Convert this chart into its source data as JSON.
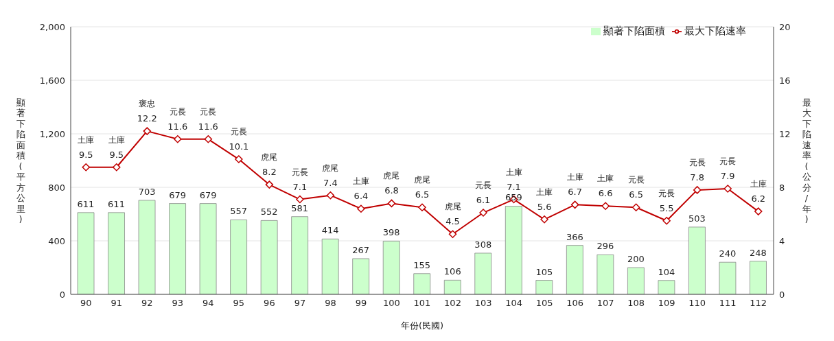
{
  "chart_data": {
    "type": "bar",
    "xlabel": "年份(民國)",
    "ylabel": "顯著下陷面積(平方公里)",
    "y2label": "最大下陷速率(公分/年)",
    "categories": [
      "90",
      "91",
      "92",
      "93",
      "94",
      "95",
      "96",
      "97",
      "98",
      "99",
      "100",
      "101",
      "102",
      "103",
      "104",
      "105",
      "106",
      "107",
      "108",
      "109",
      "110",
      "111",
      "112"
    ],
    "series": [
      {
        "name": "顯著下陷面積",
        "color": "#ccffcc",
        "values": [
          611,
          611,
          703,
          679,
          679,
          557,
          552,
          581,
          414,
          267,
          398,
          155,
          106,
          308,
          659,
          105,
          366,
          296,
          200,
          104,
          503,
          240,
          248
        ]
      },
      {
        "name": "最大下陷速率",
        "type": "line",
        "axis": "y2",
        "color": "#c00000",
        "marker": "diamond",
        "values": [
          9.5,
          9.5,
          12.2,
          11.6,
          11.6,
          10.1,
          8.2,
          7.1,
          7.4,
          6.4,
          6.8,
          6.5,
          4.5,
          6.1,
          7.1,
          5.6,
          6.7,
          6.6,
          6.5,
          5.5,
          7.8,
          7.9,
          6.2
        ]
      }
    ],
    "annotations": [
      "土庫",
      "土庫",
      "褒忠",
      "元長",
      "元長",
      "元長",
      "虎尾",
      "元長",
      "虎尾",
      "土庫",
      "虎尾",
      "虎尾",
      "虎尾",
      "元長",
      "土庫",
      "土庫",
      "土庫",
      "土庫",
      "元長",
      "元長",
      "元長",
      "元長",
      "土庫"
    ],
    "ylim": [
      0,
      2000
    ],
    "yticks": [
      {
        "value": 0,
        "label": "0"
      },
      {
        "value": 400,
        "label": "400"
      },
      {
        "value": 800,
        "label": "800"
      },
      {
        "value": 1200,
        "label": "1,200"
      },
      {
        "value": 1600,
        "label": "1,600"
      },
      {
        "value": 2000,
        "label": "2,000"
      }
    ],
    "y2lim": [
      0,
      20
    ],
    "y2ticks": [
      0,
      4,
      8,
      12,
      16,
      20
    ],
    "grid": "y",
    "legend": "top right",
    "data_labels": true
  }
}
